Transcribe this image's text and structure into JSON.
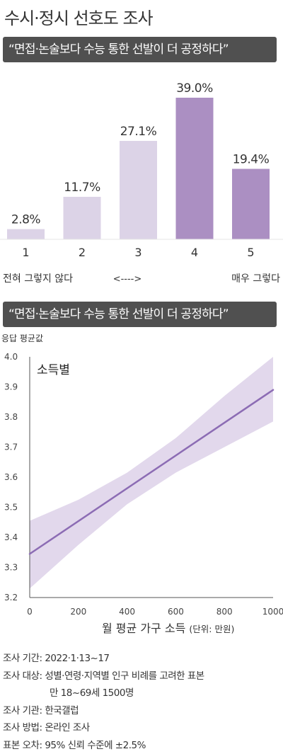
{
  "page": {
    "title": "수시·정시 선호도 조사"
  },
  "chart_data": [
    {
      "type": "bar",
      "title": "“면접·논술보다 수능 통한 선발이 더 공정하다”",
      "categories": [
        "1",
        "2",
        "3",
        "4",
        "5"
      ],
      "values": [
        2.8,
        11.7,
        27.1,
        39.0,
        19.4
      ],
      "value_labels": [
        "2.8%",
        "11.7%",
        "27.1%",
        "39.0%",
        "19.4%"
      ],
      "scale_labels": {
        "left": "전혀 그렇지 않다",
        "middle": "<---->",
        "right": "매우 그렇다"
      },
      "colors": {
        "light": "#dcd3e7",
        "dark": "#ab8fc2"
      },
      "highlighted": [
        "4",
        "5"
      ]
    },
    {
      "type": "line",
      "title": "“면접·논술보다 수능 통한 선발이 더 공정하다”",
      "panel_label": "소득별",
      "ylabel": "응답 평균값",
      "xlabel": "월 평균 가구 소득",
      "xlabel_unit": "(단위: 만원)",
      "xlim": [
        0,
        1000
      ],
      "ylim": [
        3.2,
        4.0
      ],
      "xticks": [
        0,
        200,
        400,
        600,
        800,
        1000
      ],
      "yticks": [
        "4.0",
        "3.9",
        "3.8",
        "3.7",
        "3.6",
        "3.5",
        "3.4",
        "3.3",
        "3.2"
      ],
      "series": [
        {
          "x": [
            0,
            1000
          ],
          "y": [
            3.345,
            3.89
          ]
        }
      ],
      "confidence_band": {
        "x": [
          0,
          200,
          400,
          600,
          800,
          1000
        ],
        "upper": [
          3.455,
          3.525,
          3.615,
          3.73,
          3.87,
          4.0
        ],
        "lower": [
          3.23,
          3.375,
          3.51,
          3.615,
          3.7,
          3.785
        ]
      },
      "colors": {
        "line": "#8c6cb4",
        "band": "#e2d8ec"
      }
    }
  ],
  "footer": [
    {
      "key": "조사 기간:",
      "value": "2022·1·13~17"
    },
    {
      "key": "조사 대상:",
      "value": "성별·연령·지역별 인구 비례를 고려한 표본",
      "value2": "만 18~69세 1500명"
    },
    {
      "key": "조사 기관:",
      "value": "한국갤럽"
    },
    {
      "key": "조사 방법:",
      "value": "온라인 조사"
    },
    {
      "key": "표본 오차:",
      "value": "95% 신뢰 수준에 ±2.5%"
    }
  ]
}
